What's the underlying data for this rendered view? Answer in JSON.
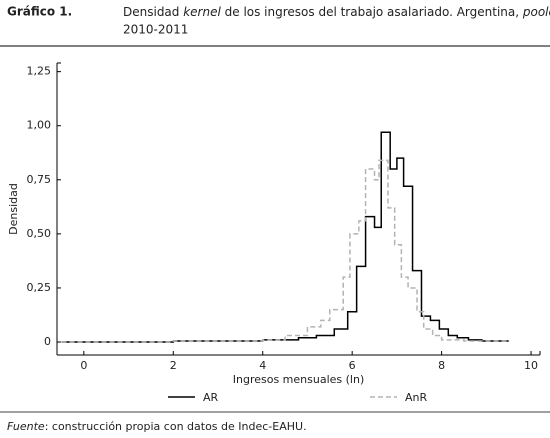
{
  "header": "Gráfico 1.",
  "title": [
    "Densidad ",
    "kernel",
    " de los ingresos del trabajo asalariado. Argentina, ",
    "pooled"
  ],
  "title_line2": "2010-2011",
  "source": [
    "Fuente",
    ": construcción propia con datos de Indec-EAHU."
  ],
  "chart_data": {
    "type": "line",
    "step": "post",
    "xlabel": "Ingresos mensuales (ln)",
    "ylabel": "Densidad",
    "xlim": [
      -0.6,
      10.2
    ],
    "ylim": [
      -0.06,
      1.29
    ],
    "xticks": [
      0,
      2,
      4,
      6,
      8,
      10
    ],
    "yticks": [
      0,
      {
        "value": 0.25,
        "label": "0,25"
      },
      {
        "value": 0.5,
        "label": "0,50"
      },
      {
        "value": 0.75,
        "label": "0,75"
      },
      {
        "value": 1.0,
        "label": "1,00"
      },
      {
        "value": 1.25,
        "label": "1,25"
      }
    ],
    "series": [
      {
        "name": "AR",
        "color": "#000000",
        "dashed": false,
        "x": [
          -0.5,
          2,
          4,
          4.8,
          5.2,
          5.6,
          5.9,
          6.1,
          6.3,
          6.5,
          6.65,
          6.85,
          7.0,
          7.15,
          7.35,
          7.55,
          7.75,
          7.95,
          8.15,
          8.35,
          8.6,
          8.9,
          9.5
        ],
        "values": [
          0,
          0.005,
          0.01,
          0.02,
          0.03,
          0.06,
          0.14,
          0.35,
          0.58,
          0.53,
          0.97,
          0.8,
          0.85,
          0.72,
          0.33,
          0.12,
          0.1,
          0.06,
          0.03,
          0.02,
          0.01,
          0.005,
          0.005
        ]
      },
      {
        "name": "AnR",
        "color": "#b3b3b3",
        "dashed": true,
        "x": [
          -0.5,
          2,
          4,
          4.5,
          5,
          5.3,
          5.5,
          5.8,
          5.95,
          6.15,
          6.3,
          6.5,
          6.6,
          6.8,
          6.95,
          7.1,
          7.25,
          7.45,
          7.6,
          7.8,
          8,
          8.5,
          9.5
        ],
        "values": [
          0,
          0.005,
          0.01,
          0.03,
          0.07,
          0.1,
          0.15,
          0.3,
          0.5,
          0.56,
          0.8,
          0.75,
          0.84,
          0.62,
          0.45,
          0.3,
          0.25,
          0.14,
          0.06,
          0.03,
          0.01,
          0.005,
          0.005
        ]
      }
    ]
  }
}
